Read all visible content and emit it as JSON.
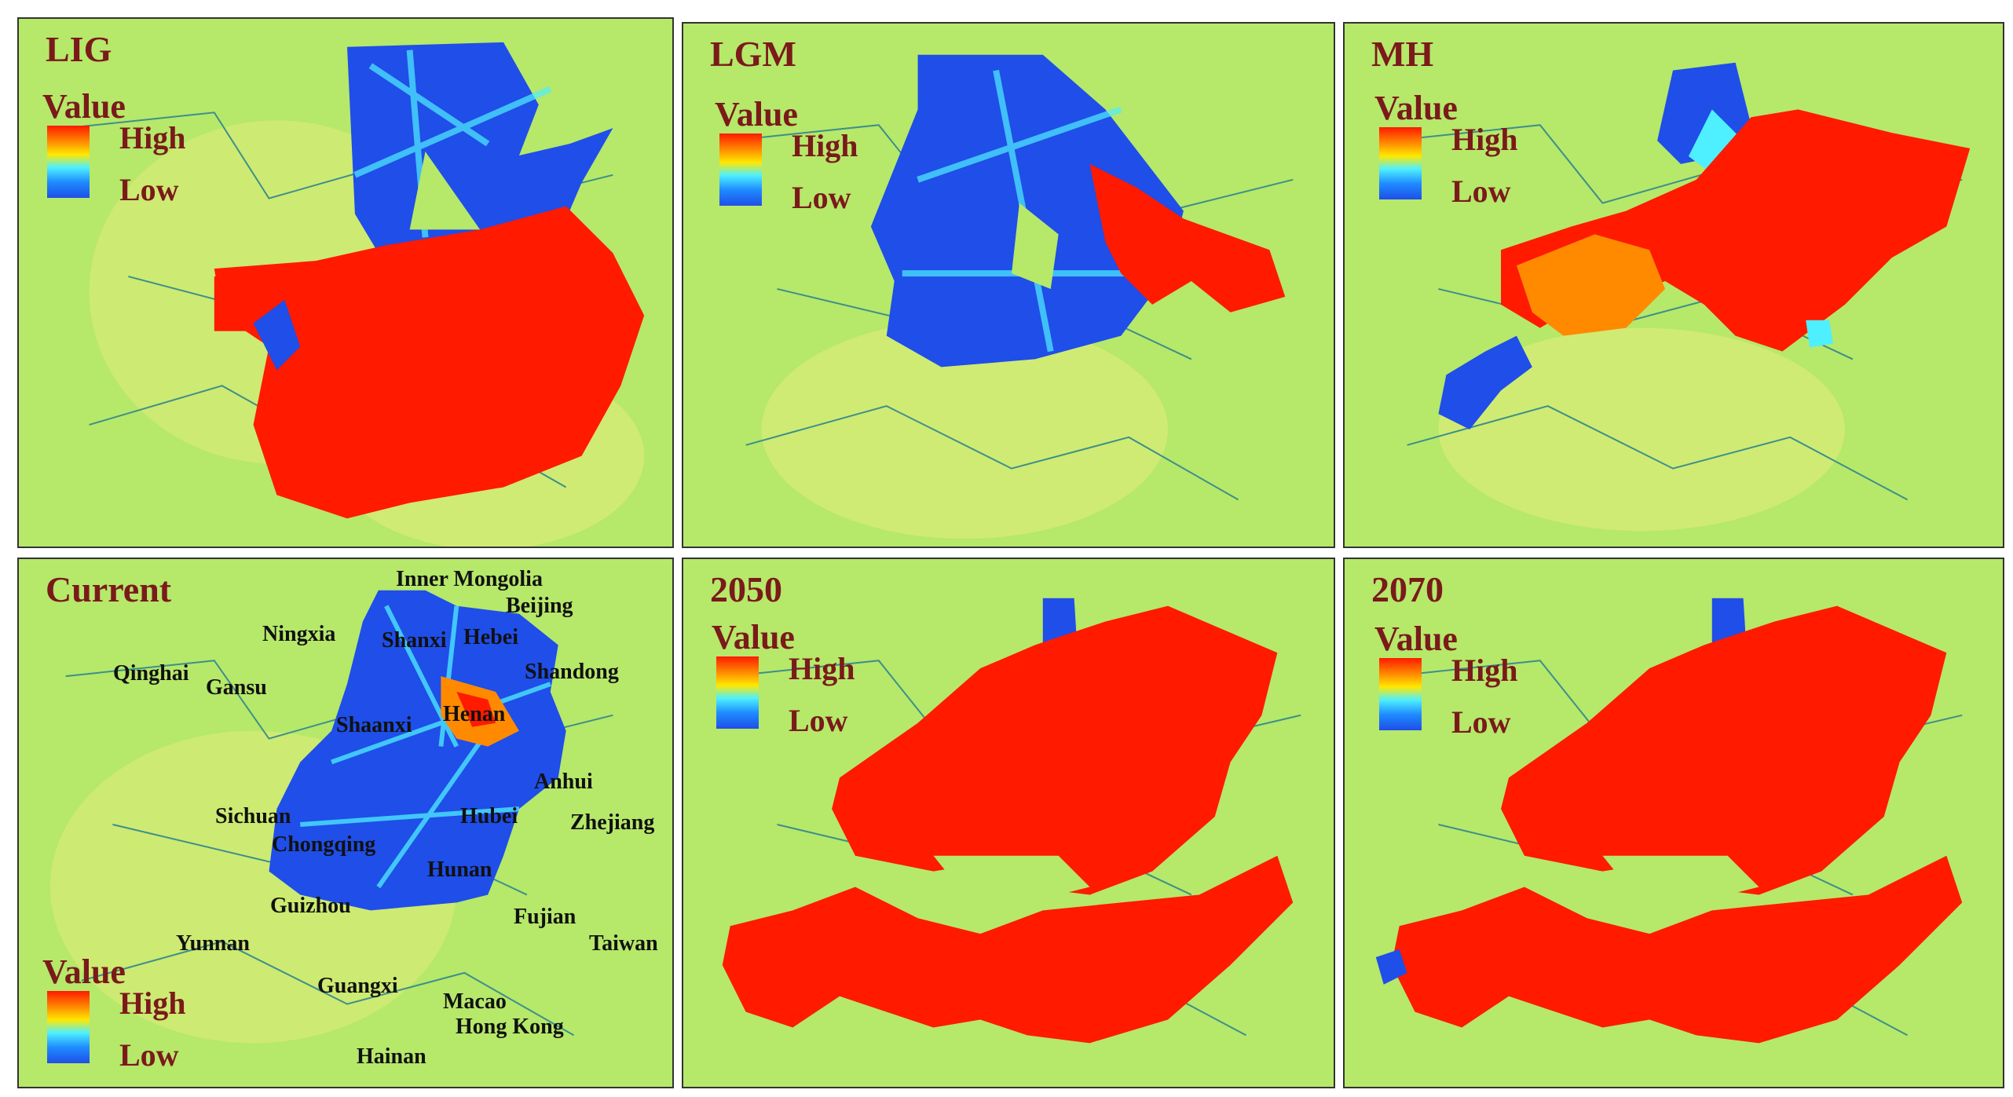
{
  "panels": [
    {
      "title": "LIG"
    },
    {
      "title": "LGM"
    },
    {
      "title": "MH"
    },
    {
      "title": "Current"
    },
    {
      "title": "2050"
    },
    {
      "title": "2070"
    }
  ],
  "legend": {
    "title": "Value",
    "high": "High",
    "low": "Low"
  },
  "colors": {
    "land": "#b6e86a",
    "land_light": "#e4ec7a",
    "boundary": "#3d8f8a",
    "high": "#ff1a00",
    "mid_high": "#ff8a00",
    "low": "#1f4ee8",
    "low_light": "#4ef0ff"
  },
  "places": [
    "Inner Mongolia",
    "Beijing",
    "Ningxia",
    "Shanxi",
    "Hebei",
    "Qinghai",
    "Gansu",
    "Shandong",
    "Shaanxi",
    "Henan",
    "Anhui",
    "Sichuan",
    "Hubei",
    "Zhejiang",
    "Chongqing",
    "Hunan",
    "Guizhou",
    "Fujian",
    "Yunnan",
    "Taiwan",
    "Guangxi",
    "Macao",
    "Hong Kong",
    "Hainan"
  ]
}
